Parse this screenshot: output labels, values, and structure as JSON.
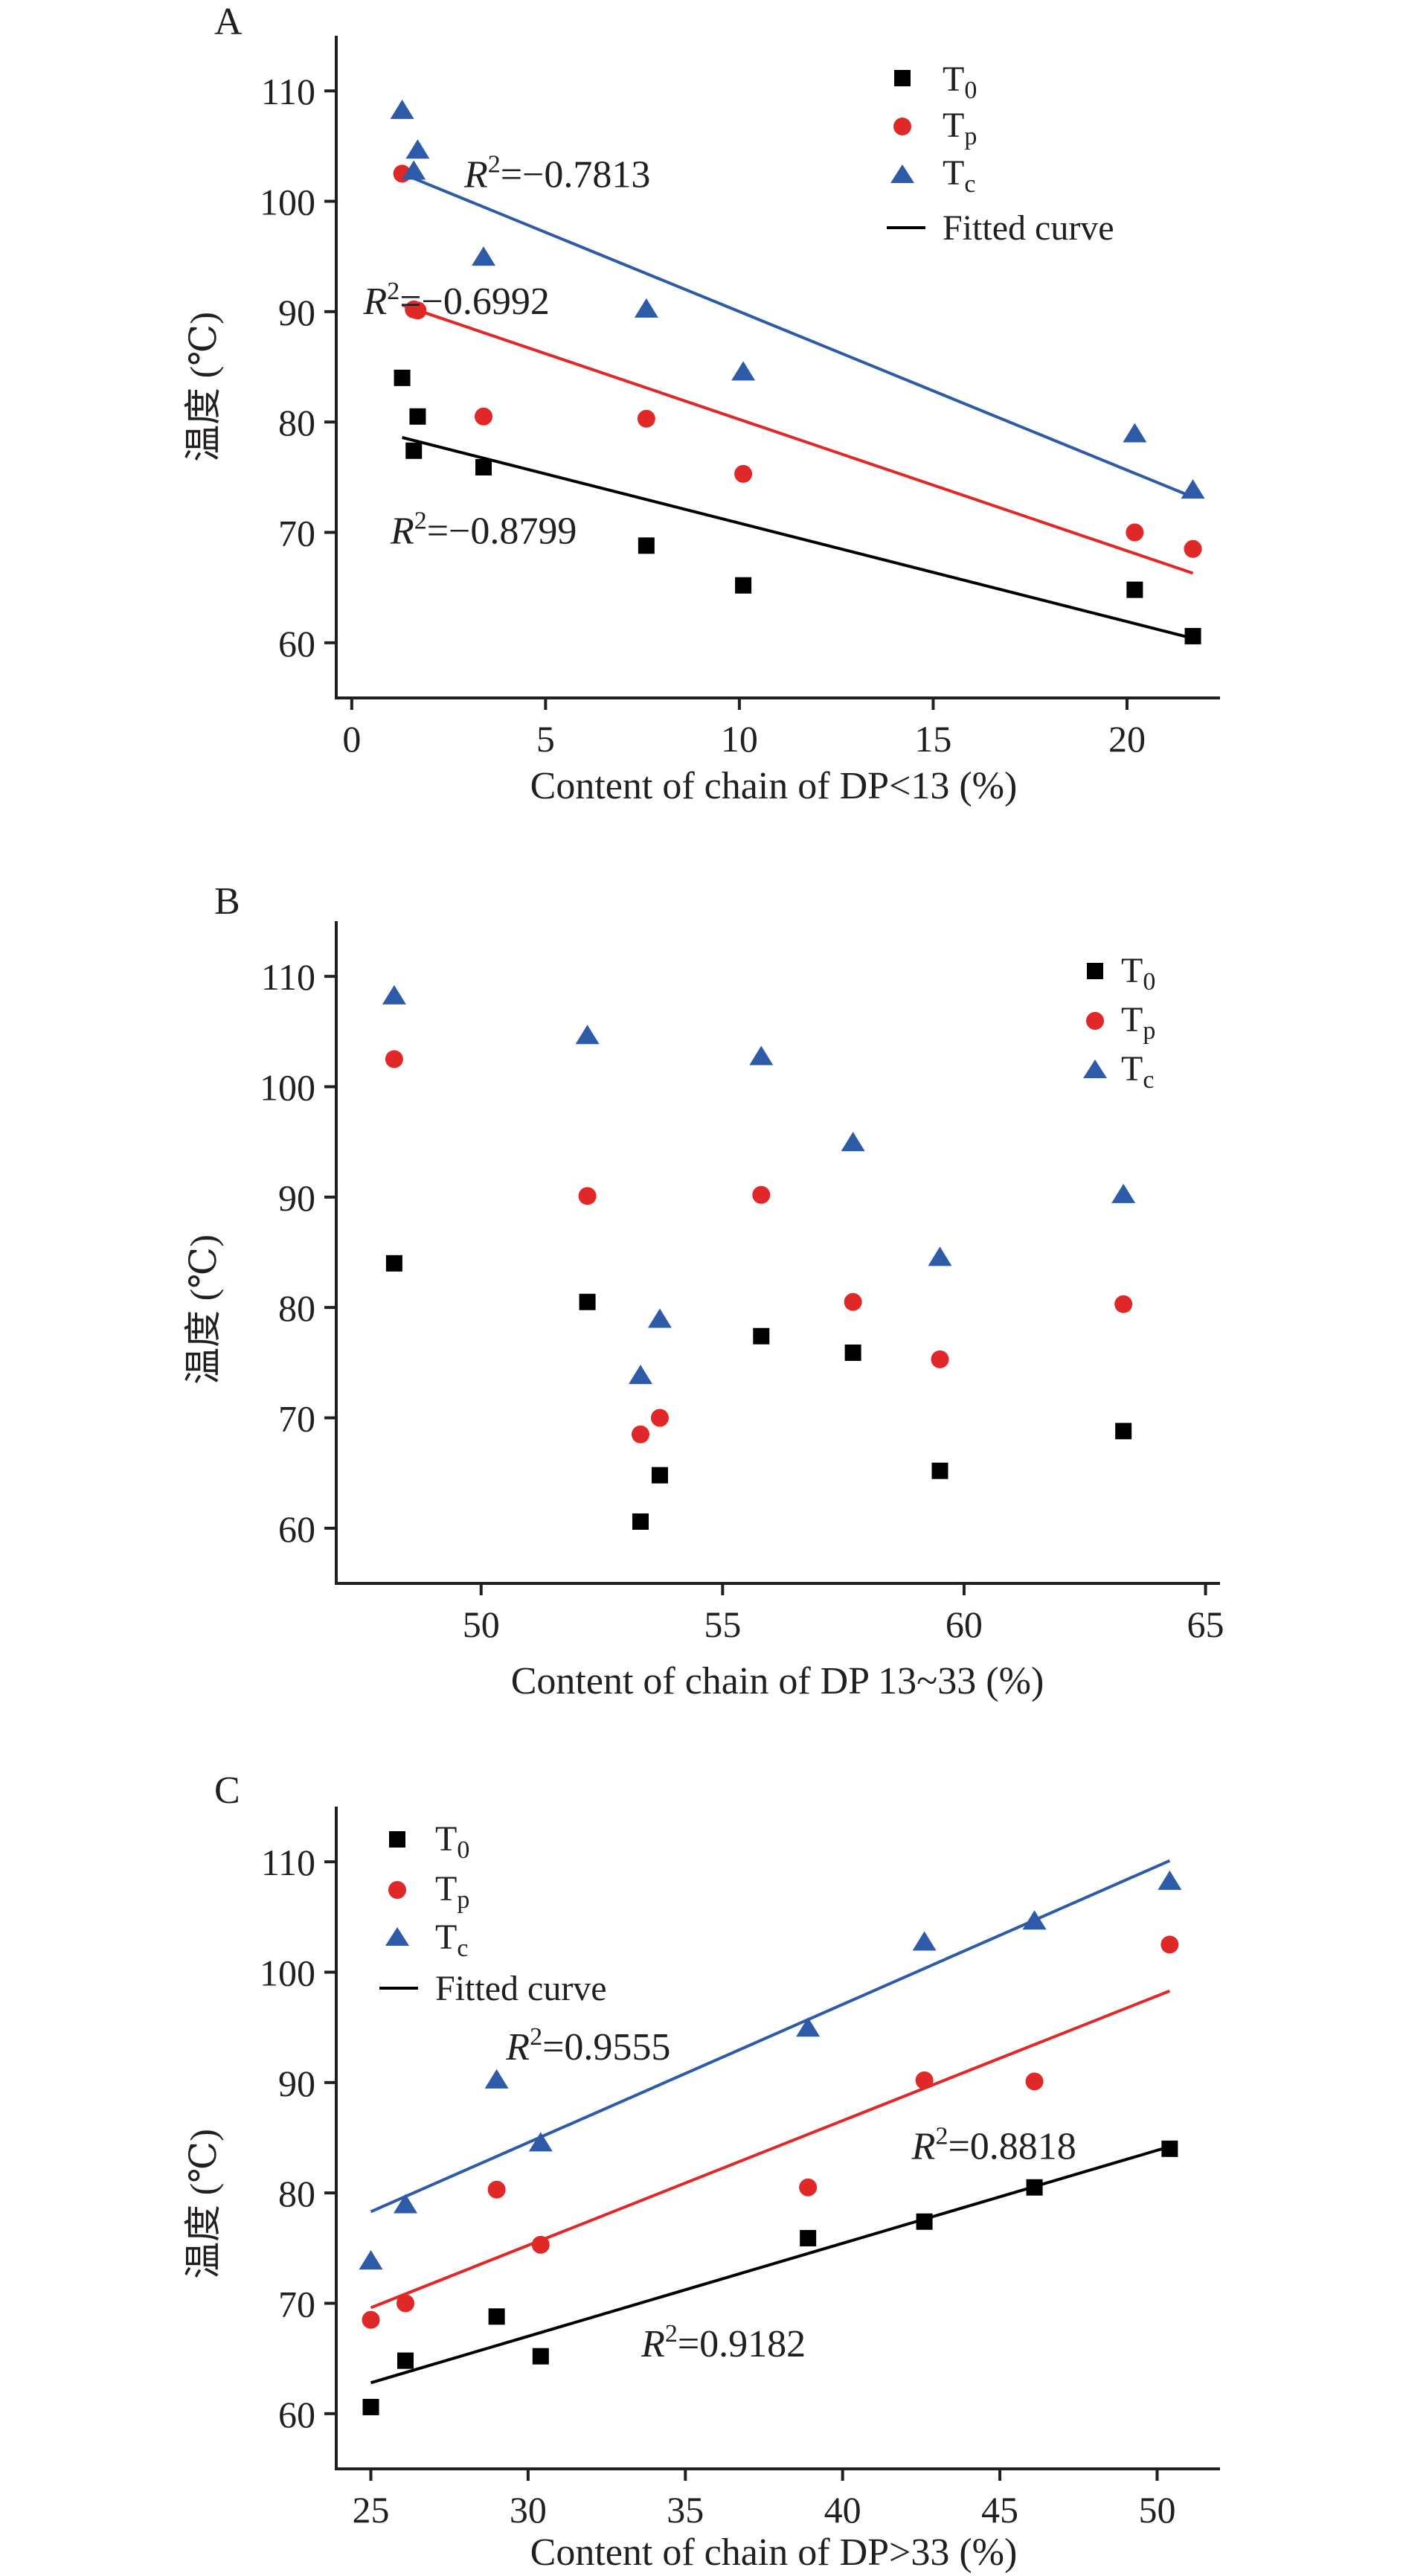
{
  "colors": {
    "t0": "#000000",
    "tp": "#e02828",
    "tc": "#2e5ba8",
    "fit_tp": "#e02828",
    "fit_tc": "#2e5ba8",
    "fit_t0": "#000000",
    "axis": "#231f20"
  },
  "chart_data": [
    {
      "panel": "A",
      "type": "scatter",
      "xlabel": "Content of chain of DP<13 (%)",
      "ylabel": "温度 (℃)",
      "xlim": [
        -0.4,
        22.4
      ],
      "ylim": [
        55,
        115
      ],
      "xticks": [
        0,
        5,
        10,
        15,
        20
      ],
      "yticks": [
        60,
        70,
        80,
        90,
        100,
        110
      ],
      "legend": {
        "t0": "T",
        "t0_sub": "0",
        "tp": "T",
        "tp_sub": "p",
        "tc": "T",
        "tc_sub": "c",
        "fit": "Fitted curve"
      },
      "series": [
        {
          "key": "t0",
          "marker": "square",
          "points": [
            [
              1.3,
              84.0
            ],
            [
              1.7,
              80.5
            ],
            [
              1.6,
              77.4
            ],
            [
              3.4,
              75.9
            ],
            [
              7.6,
              68.8
            ],
            [
              10.1,
              65.2
            ],
            [
              20.2,
              64.8
            ],
            [
              21.7,
              60.6
            ]
          ],
          "fit": [
            [
              1.3,
              78.6
            ],
            [
              21.7,
              60.4
            ]
          ]
        },
        {
          "key": "tp",
          "marker": "circle",
          "points": [
            [
              1.3,
              102.5
            ],
            [
              1.7,
              90.1
            ],
            [
              1.6,
              90.2
            ],
            [
              3.4,
              80.5
            ],
            [
              7.6,
              80.3
            ],
            [
              10.1,
              75.3
            ],
            [
              20.2,
              70.0
            ],
            [
              21.7,
              68.5
            ]
          ],
          "fit": [
            [
              1.3,
              90.6
            ],
            [
              21.7,
              66.3
            ]
          ]
        },
        {
          "key": "tc",
          "marker": "triangle",
          "points": [
            [
              1.3,
              108.2
            ],
            [
              1.7,
              104.6
            ],
            [
              1.6,
              102.7
            ],
            [
              3.4,
              94.9
            ],
            [
              7.6,
              90.2
            ],
            [
              10.1,
              84.5
            ],
            [
              20.2,
              78.9
            ],
            [
              21.7,
              73.8
            ]
          ],
          "fit": [
            [
              1.3,
              102.5
            ],
            [
              21.7,
              73.2
            ]
          ]
        }
      ],
      "annotations": [
        {
          "x": 2.9,
          "y": 102.5,
          "r2": "=−0.7813"
        },
        {
          "x": 0.3,
          "y": 91.0,
          "r2": "=−0.6992"
        },
        {
          "x": 1.0,
          "y": 70.2,
          "r2": "=−0.8799"
        }
      ]
    },
    {
      "panel": "B",
      "type": "scatter",
      "xlabel": "Content of chain of DP 13~33 (%)",
      "ylabel": "温度 (℃)",
      "xlim": [
        47.0,
        65.3
      ],
      "ylim": [
        55,
        115
      ],
      "xticks": [
        50,
        55,
        60,
        65
      ],
      "yticks": [
        60,
        70,
        80,
        90,
        100,
        110
      ],
      "legend": {
        "t0": "T",
        "t0_sub": "0",
        "tp": "T",
        "tp_sub": "p",
        "tc": "T",
        "tc_sub": "c"
      },
      "series": [
        {
          "key": "t0",
          "marker": "square",
          "points": [
            [
              48.2,
              84.0
            ],
            [
              52.2,
              80.5
            ],
            [
              53.3,
              60.6
            ],
            [
              53.7,
              64.8
            ],
            [
              55.8,
              77.4
            ],
            [
              57.7,
              75.9
            ],
            [
              59.5,
              65.2
            ],
            [
              63.3,
              68.8
            ]
          ]
        },
        {
          "key": "tp",
          "marker": "circle",
          "points": [
            [
              48.2,
              102.5
            ],
            [
              52.2,
              90.1
            ],
            [
              53.3,
              68.5
            ],
            [
              53.7,
              70.0
            ],
            [
              55.8,
              90.2
            ],
            [
              57.7,
              80.5
            ],
            [
              59.5,
              75.3
            ],
            [
              63.3,
              80.3
            ]
          ]
        },
        {
          "key": "tc",
          "marker": "triangle",
          "points": [
            [
              48.2,
              108.2
            ],
            [
              52.2,
              104.6
            ],
            [
              53.3,
              73.8
            ],
            [
              53.7,
              78.9
            ],
            [
              55.8,
              102.7
            ],
            [
              57.7,
              94.9
            ],
            [
              59.5,
              84.5
            ],
            [
              63.3,
              90.2
            ]
          ]
        }
      ]
    },
    {
      "panel": "C",
      "type": "scatter",
      "xlabel": "Content of chain of DP>33 (%)",
      "ylabel": "温度 (℃)",
      "xlim": [
        23.9,
        52.0
      ],
      "ylim": [
        55,
        115
      ],
      "xticks": [
        25,
        30,
        35,
        40,
        45,
        50
      ],
      "yticks": [
        60,
        70,
        80,
        90,
        100,
        110
      ],
      "legend": {
        "t0": "T",
        "t0_sub": "0",
        "tp": "T",
        "tp_sub": "p",
        "tc": "T",
        "tc_sub": "c",
        "fit": "Fitted curve"
      },
      "series": [
        {
          "key": "t0",
          "marker": "square",
          "points": [
            [
              25.0,
              60.6
            ],
            [
              26.1,
              64.8
            ],
            [
              29.0,
              68.8
            ],
            [
              30.4,
              65.2
            ],
            [
              38.9,
              75.9
            ],
            [
              42.6,
              77.4
            ],
            [
              46.1,
              80.5
            ],
            [
              50.4,
              84.0
            ]
          ],
          "fit": [
            [
              25.0,
              62.8
            ],
            [
              50.4,
              84.2
            ]
          ]
        },
        {
          "key": "tp",
          "marker": "circle",
          "points": [
            [
              25.0,
              68.5
            ],
            [
              26.1,
              70.0
            ],
            [
              29.0,
              80.3
            ],
            [
              30.4,
              75.3
            ],
            [
              38.9,
              80.5
            ],
            [
              42.6,
              90.2
            ],
            [
              46.1,
              90.1
            ],
            [
              50.4,
              102.5
            ]
          ],
          "fit": [
            [
              25.0,
              69.6
            ],
            [
              50.4,
              98.3
            ]
          ]
        },
        {
          "key": "tc",
          "marker": "triangle",
          "points": [
            [
              25.0,
              73.8
            ],
            [
              26.1,
              78.9
            ],
            [
              29.0,
              90.2
            ],
            [
              30.4,
              84.5
            ],
            [
              38.9,
              94.9
            ],
            [
              42.6,
              102.7
            ],
            [
              46.1,
              104.6
            ],
            [
              50.4,
              108.2
            ]
          ],
          "fit": [
            [
              25.0,
              78.3
            ],
            [
              50.4,
              110.1
            ]
          ]
        }
      ],
      "annotations": [
        {
          "x": 29.3,
          "y": 93.3,
          "r2": "=0.9555"
        },
        {
          "x": 42.2,
          "y": 84.3,
          "r2": "=0.8818"
        },
        {
          "x": 33.6,
          "y": 66.4,
          "r2": "=0.9182"
        }
      ]
    }
  ]
}
